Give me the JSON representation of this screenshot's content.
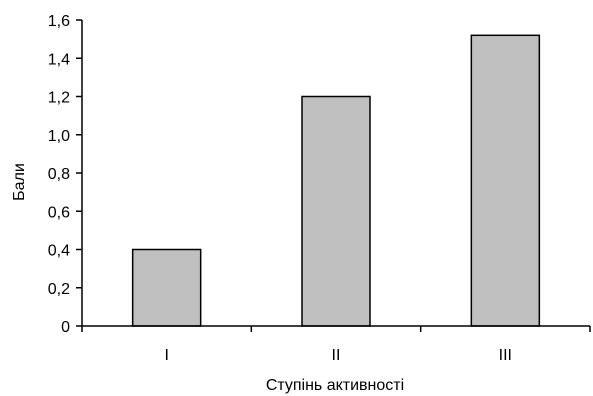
{
  "chart_data": {
    "type": "bar",
    "categories": [
      "I",
      "II",
      "III"
    ],
    "values": [
      0.4,
      1.2,
      1.52
    ],
    "title": "",
    "xlabel": "Ступінь активності",
    "ylabel": "Бали",
    "ylim": [
      0,
      1.6
    ],
    "yticks": [
      0,
      0.2,
      0.4,
      0.6,
      0.8,
      1.0,
      1.2,
      1.4,
      1.6
    ],
    "ytick_labels": [
      "0",
      "0,2",
      "0,4",
      "0,6",
      "0,8",
      "1,0",
      "1,2",
      "1,4",
      "1,6"
    ],
    "grid": false,
    "legend": "none",
    "bar_fill": "#c0c0c0",
    "bar_stroke": "#000000"
  }
}
